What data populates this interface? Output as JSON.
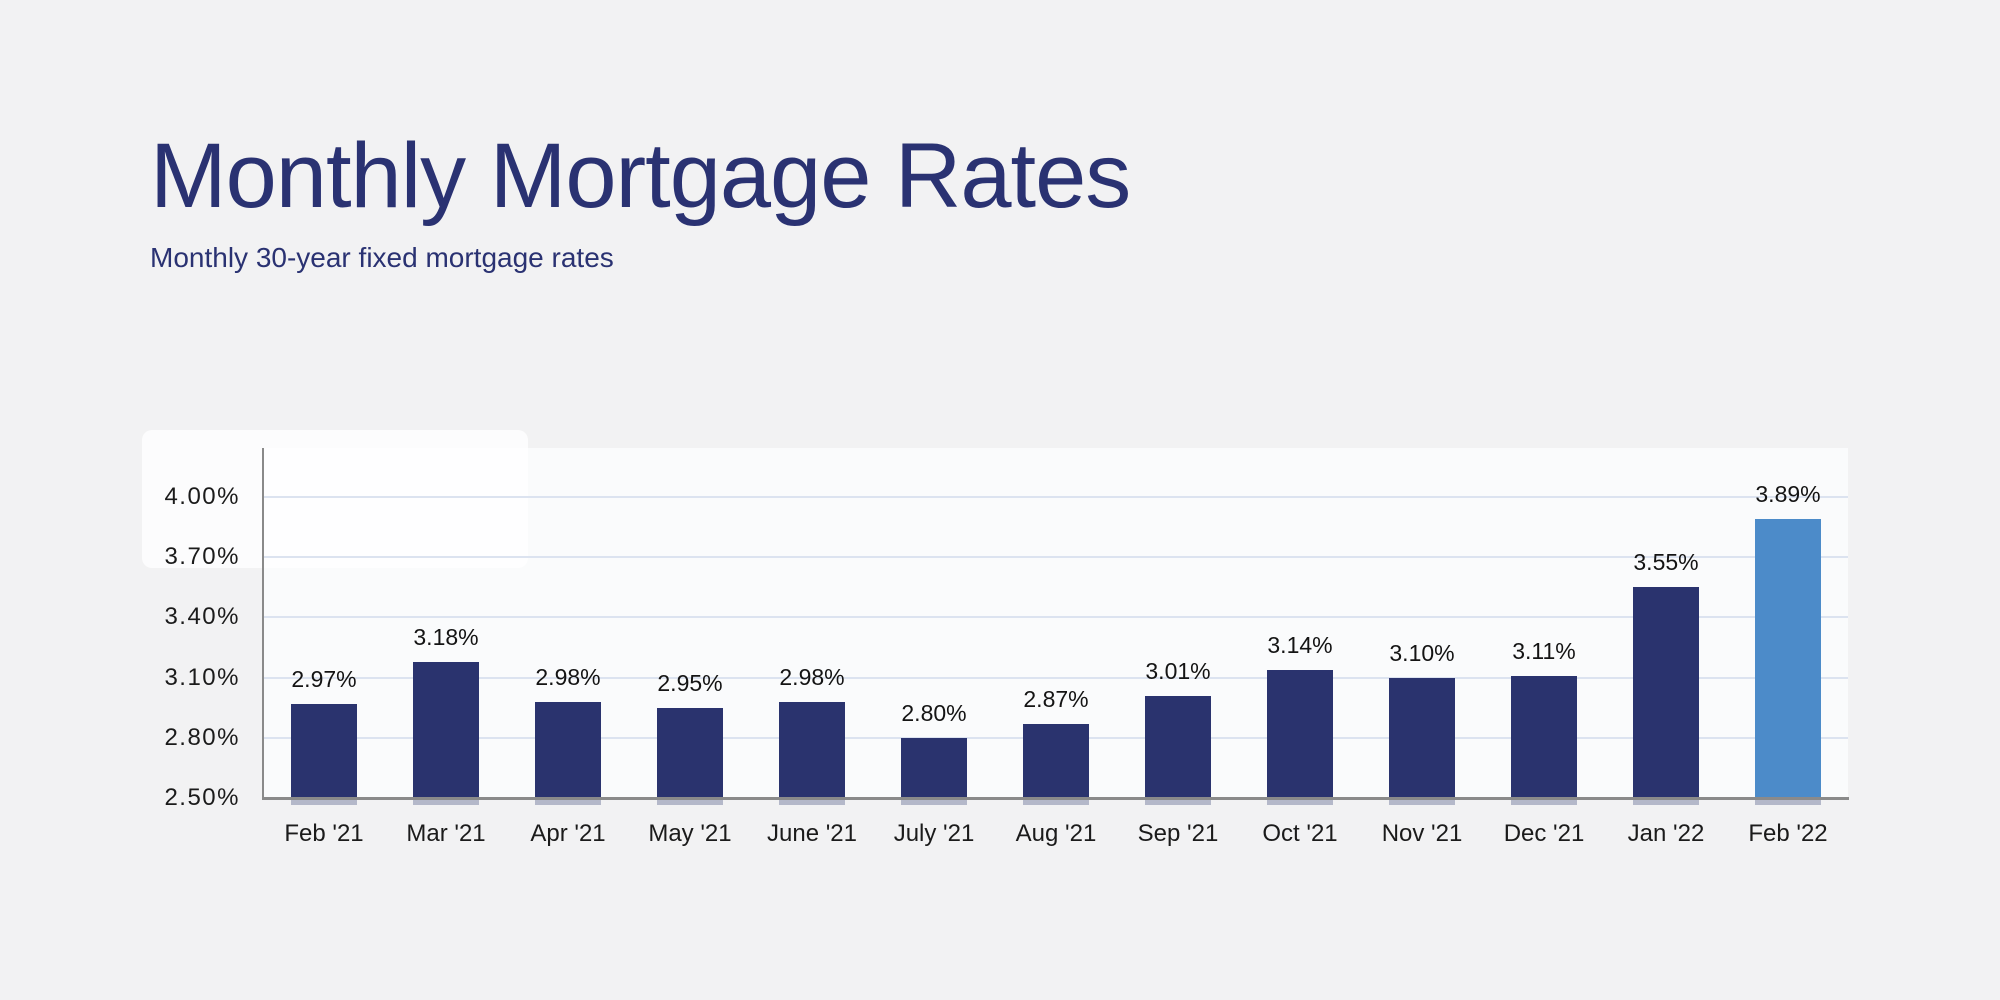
{
  "header": {
    "title": "Monthly Mortgage Rates",
    "subtitle": "Monthly 30-year fixed mortgage rates"
  },
  "chart_data": {
    "type": "bar",
    "title": "Monthly Mortgage Rates",
    "subtitle": "Monthly 30-year fixed mortgage rates",
    "categories": [
      "Feb '21",
      "Mar '21",
      "Apr '21",
      "May '21",
      "June '21",
      "July '21",
      "Aug '21",
      "Sep '21",
      "Oct '21",
      "Nov '21",
      "Dec '21",
      "Jan '22",
      "Feb '22"
    ],
    "values": [
      2.97,
      3.18,
      2.98,
      2.95,
      2.98,
      2.8,
      2.87,
      3.01,
      3.14,
      3.1,
      3.11,
      3.55,
      3.89
    ],
    "value_labels": [
      "2.97%",
      "3.18%",
      "2.98%",
      "2.95%",
      "2.98%",
      "2.80%",
      "2.87%",
      "3.01%",
      "3.14%",
      "3.10%",
      "3.11%",
      "3.55%",
      "3.89%"
    ],
    "unit": "%",
    "xlabel": "",
    "ylabel": "",
    "ylim": [
      2.5,
      4.0
    ],
    "yticks": [
      {
        "value": 2.5,
        "label": "2.50%"
      },
      {
        "value": 2.8,
        "label": "2.80%"
      },
      {
        "value": 3.1,
        "label": "3.10%"
      },
      {
        "value": 3.4,
        "label": "3.40%"
      },
      {
        "value": 3.7,
        "label": "3.70%"
      },
      {
        "value": 4.0,
        "label": "4.00%"
      }
    ],
    "grid": true,
    "legend": false,
    "highlight_index": 12,
    "colors": {
      "background": "#f2f2f3",
      "plot_background": "#fafbfc",
      "bar": "#2a336e",
      "highlight_bar": "#4c8bc9",
      "title_text": "#2a3272",
      "subtitle_text": "#2a3272",
      "gridline": "#dce3f0",
      "axis_line": "#8a8a8a",
      "tick_label_text": "#1b1b1b",
      "value_label_text": "#141414"
    }
  }
}
